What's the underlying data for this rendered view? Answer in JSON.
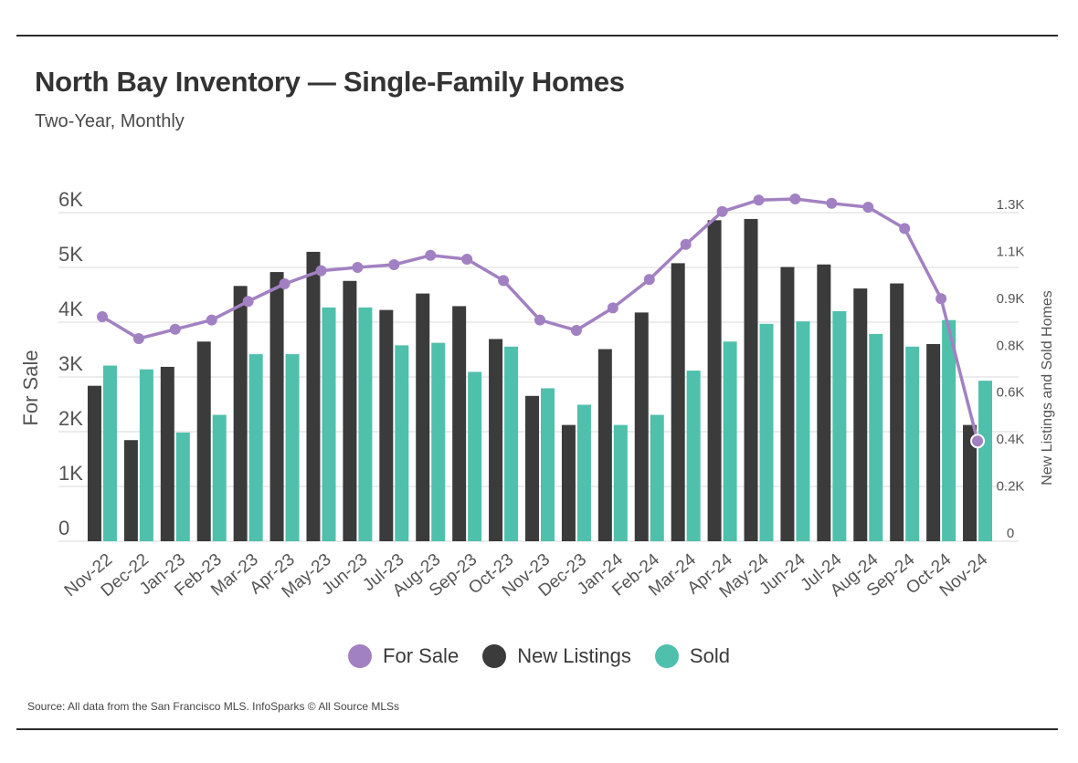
{
  "header": {
    "title": "North Bay Inventory — Single-Family Homes",
    "subtitle": "Two-Year, Monthly"
  },
  "footer": {
    "source": "Source:  All data from the San Francisco MLS. InfoSparks © All Source MLSs"
  },
  "colors": {
    "for_sale": "#a281c2",
    "new_listings": "#3b3b3b",
    "sold": "#4fc0ab",
    "grid": "#d9d9d9",
    "axis_text": "#555555"
  },
  "chart_data": {
    "type": "bar",
    "categories": [
      "Nov-22",
      "Dec-22",
      "Jan-23",
      "Feb-23",
      "Mar-23",
      "Apr-23",
      "May-23",
      "Jun-23",
      "Jul-23",
      "Aug-23",
      "Sep-23",
      "Oct-23",
      "Nov-23",
      "Dec-23",
      "Jan-24",
      "Feb-24",
      "Mar-24",
      "Apr-24",
      "May-24",
      "Jun-24",
      "Jul-24",
      "Aug-24",
      "Sep-24",
      "Oct-24",
      "Nov-24"
    ],
    "left_axis": {
      "label": "For Sale",
      "ticks": [
        "0",
        "1K",
        "2K",
        "3K",
        "4K",
        "5K",
        "6K"
      ],
      "ylim": [
        0,
        6000
      ]
    },
    "right_axis": {
      "label": "New Listings and Sold Homes",
      "ticks": [
        "0",
        "0.2K",
        "0.4K",
        "0.6K",
        "0.8K",
        "0.9K",
        "1.1K",
        "1.3K"
      ],
      "ylim": [
        0,
        1300
      ]
    },
    "grid": true,
    "legend_position": "bottom-center",
    "series": [
      {
        "name": "For Sale",
        "type": "line",
        "axis": "left",
        "values": [
          4100,
          3700,
          3870,
          4040,
          4380,
          4700,
          4940,
          5000,
          5050,
          5220,
          5150,
          4760,
          4040,
          3850,
          4260,
          4780,
          5420,
          6020,
          6230,
          6250,
          6170,
          6100,
          5710,
          4430,
          1830
        ]
      },
      {
        "name": "New Listings",
        "type": "bar",
        "axis": "right",
        "values": [
          615,
          400,
          690,
          790,
          1010,
          1065,
          1145,
          1030,
          915,
          980,
          930,
          800,
          575,
          460,
          760,
          905,
          1100,
          1270,
          1275,
          1085,
          1095,
          1000,
          1020,
          780,
          460
        ]
      },
      {
        "name": "Sold",
        "type": "bar",
        "axis": "right",
        "values": [
          695,
          680,
          430,
          500,
          740,
          740,
          925,
          925,
          775,
          785,
          670,
          770,
          605,
          540,
          460,
          500,
          675,
          790,
          860,
          870,
          910,
          820,
          770,
          875,
          635
        ]
      }
    ]
  }
}
